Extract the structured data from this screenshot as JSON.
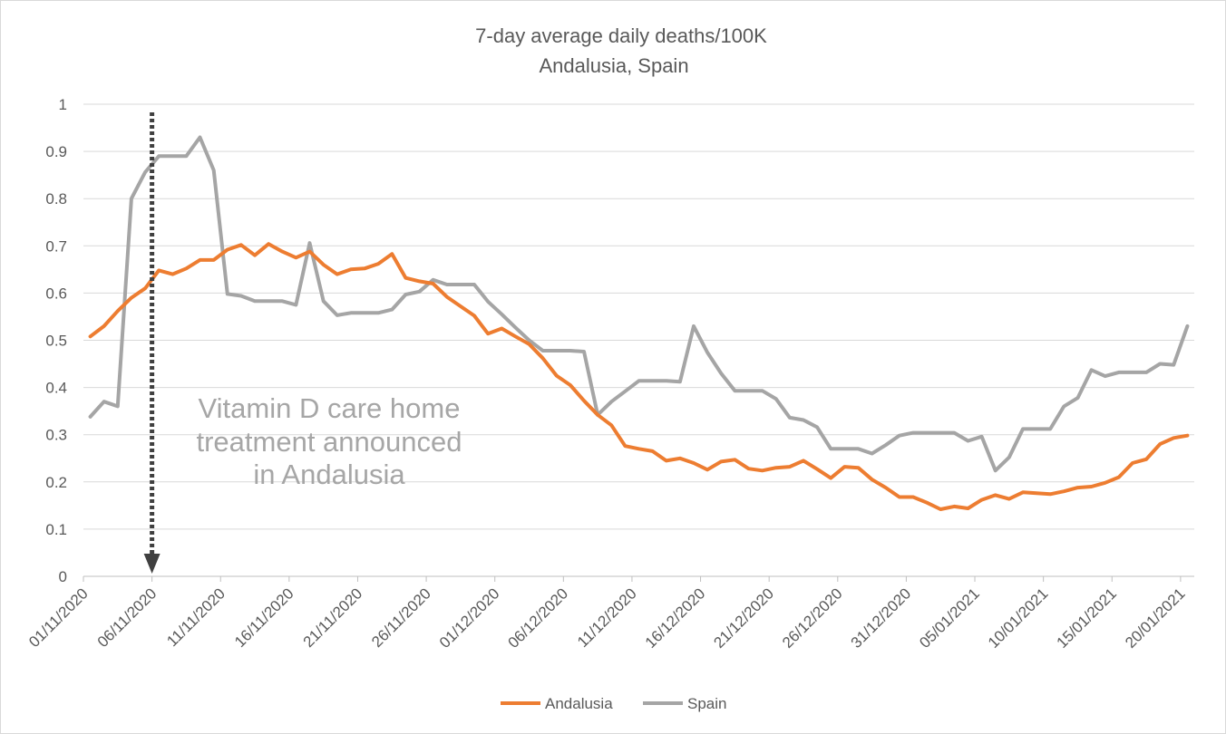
{
  "chart_data": {
    "type": "line",
    "title": "7-day average daily deaths/100K",
    "subtitle": "Andalusia, Spain",
    "ylim": [
      0,
      1
    ],
    "y_ticks": [
      "0",
      "0.1",
      "0.2",
      "0.3",
      "0.4",
      "0.5",
      "0.6",
      "0.7",
      "0.8",
      "0.9",
      "1"
    ],
    "x_tick_labels": [
      "01/11/2020",
      "06/11/2020",
      "11/11/2020",
      "16/11/2020",
      "21/11/2020",
      "26/11/2020",
      "01/12/2020",
      "06/12/2020",
      "11/12/2020",
      "16/12/2020",
      "21/12/2020",
      "26/12/2020",
      "31/12/2020",
      "05/01/2021",
      "10/01/2021",
      "15/01/2021",
      "20/01/2021"
    ],
    "x_start": "01/11/2020",
    "x_end": "20/01/2021",
    "grid": true,
    "legend_position": "bottom",
    "annotation": {
      "lines": [
        "Vitamin D care home",
        "treatment announced",
        "in Andalusia"
      ],
      "date": "06/11/2020"
    },
    "series": [
      {
        "name": "Andalusia",
        "color": "#ed7d31",
        "values": [
          0.508,
          0.53,
          0.562,
          0.59,
          0.61,
          0.648,
          0.64,
          0.652,
          0.67,
          0.67,
          0.692,
          0.702,
          0.68,
          0.704,
          0.688,
          0.675,
          0.688,
          0.66,
          0.64,
          0.65,
          0.652,
          0.662,
          0.683,
          0.632,
          0.625,
          0.62,
          0.592,
          0.572,
          0.552,
          0.514,
          0.525,
          0.508,
          0.492,
          0.462,
          0.425,
          0.405,
          0.372,
          0.342,
          0.32,
          0.276,
          0.27,
          0.265,
          0.245,
          0.25,
          0.24,
          0.226,
          0.243,
          0.247,
          0.228,
          0.224,
          0.23,
          0.232,
          0.245,
          0.227,
          0.208,
          0.232,
          0.23,
          0.205,
          0.188,
          0.168,
          0.168,
          0.156,
          0.142,
          0.148,
          0.144,
          0.162,
          0.172,
          0.164,
          0.178,
          0.176,
          0.174,
          0.18,
          0.188,
          0.19,
          0.198,
          0.21,
          0.24,
          0.248,
          0.28,
          0.293,
          0.298
        ]
      },
      {
        "name": "Spain",
        "color": "#a5a5a5",
        "values": [
          0.338,
          0.37,
          0.36,
          0.8,
          0.856,
          0.89,
          0.89,
          0.89,
          0.93,
          0.86,
          0.598,
          0.594,
          0.583,
          0.583,
          0.583,
          0.575,
          0.706,
          0.583,
          0.553,
          0.558,
          0.558,
          0.558,
          0.565,
          0.597,
          0.603,
          0.628,
          0.618,
          0.618,
          0.618,
          0.582,
          0.555,
          0.527,
          0.5,
          0.478,
          0.478,
          0.478,
          0.476,
          0.342,
          0.37,
          0.392,
          0.414,
          0.414,
          0.414,
          0.412,
          0.53,
          0.474,
          0.43,
          0.393,
          0.393,
          0.393,
          0.376,
          0.336,
          0.331,
          0.316,
          0.27,
          0.27,
          0.27,
          0.26,
          0.278,
          0.298,
          0.304,
          0.304,
          0.304,
          0.304,
          0.287,
          0.296,
          0.224,
          0.252,
          0.312,
          0.312,
          0.312,
          0.36,
          0.378,
          0.437,
          0.424,
          0.432,
          0.432,
          0.432,
          0.45,
          0.448,
          0.53
        ]
      }
    ]
  }
}
